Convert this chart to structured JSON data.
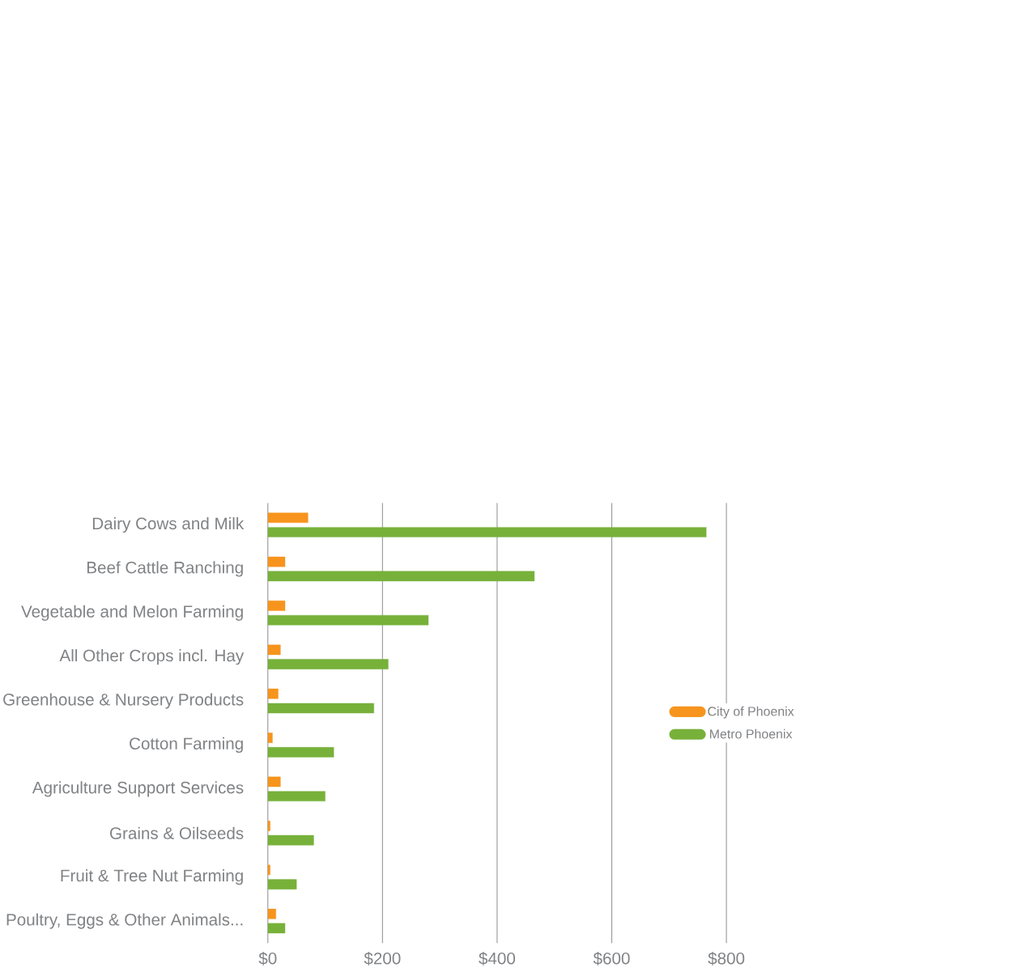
{
  "chart_data": {
    "type": "bar",
    "orientation": "horizontal",
    "categories": [
      "Dairy Cows and Milk",
      "Beef Cattle Ranching",
      "Vegetable and Melon Farming",
      "All Other Crops incl. Hay",
      "Greenhouse & Nursery  Products",
      "Cotton Farming",
      "Agriculture Support  Services",
      "Grains & Oilseeds",
      "Fruit & Tree Nut Farming",
      "Poultry, Eggs & Other Animals..."
    ],
    "series": [
      {
        "name": "City of Phoenix",
        "color": "#f7941d",
        "values": [
          70,
          30,
          30,
          22,
          18,
          8,
          22,
          4,
          4,
          14
        ]
      },
      {
        "name": "Metro Phoenix",
        "color": "#77b13a",
        "values": [
          765,
          465,
          280,
          210,
          185,
          115,
          100,
          80,
          50,
          30
        ]
      }
    ],
    "xlim": [
      0,
      800
    ],
    "xticks": [
      {
        "value": 0,
        "label": "$0"
      },
      {
        "value": 200,
        "label": "$200"
      },
      {
        "value": 400,
        "label": "$400"
      },
      {
        "value": 600,
        "label": "$600"
      },
      {
        "value": 800,
        "label": "$800"
      }
    ],
    "grid": "x",
    "legend": "right"
  }
}
